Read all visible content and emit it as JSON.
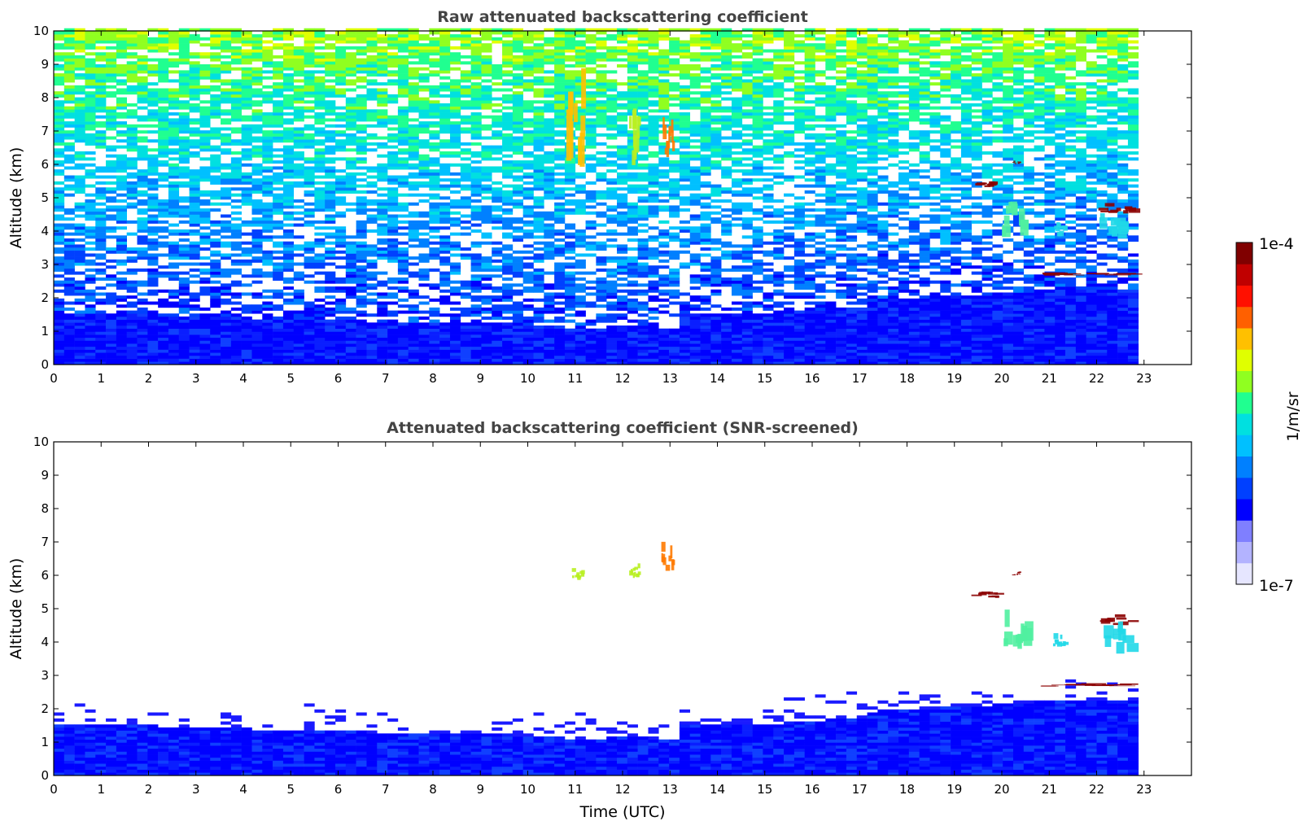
{
  "chart_data": [
    {
      "type": "heatmap",
      "title": "Raw attenuated backscattering coefficient",
      "xlabel": "",
      "ylabel": "Altitude (km)",
      "xlim": [
        0,
        24
      ],
      "ylim": [
        0,
        10
      ],
      "xticks": [
        "0",
        "1",
        "2",
        "3",
        "4",
        "5",
        "6",
        "7",
        "8",
        "9",
        "10",
        "11",
        "12",
        "13",
        "14",
        "15",
        "16",
        "17",
        "18",
        "19",
        "20",
        "21",
        "22",
        "23"
      ],
      "yticks": [
        "0",
        "1",
        "2",
        "3",
        "4",
        "5",
        "6",
        "7",
        "8",
        "9",
        "10"
      ],
      "data_end_hour": 22.85,
      "boundary_layer_top_km": [
        [
          0,
          1.5
        ],
        [
          2,
          1.45
        ],
        [
          4,
          1.35
        ],
        [
          5,
          1.3
        ],
        [
          7,
          1.25
        ],
        [
          9,
          1.2
        ],
        [
          10,
          1.15
        ],
        [
          11,
          1.05
        ],
        [
          12,
          1.1
        ],
        [
          13,
          1.05
        ],
        [
          13.1,
          1.45
        ],
        [
          15,
          1.5
        ],
        [
          17,
          1.7
        ],
        [
          17.3,
          1.9
        ],
        [
          19,
          2.0
        ],
        [
          20,
          2.1
        ],
        [
          21,
          2.2
        ],
        [
          22.85,
          2.25
        ]
      ],
      "noise": "strong background noise increasing with altitude",
      "features": [
        {
          "kind": "cirrus",
          "t": [
            10.8,
            11.2
          ],
          "z": [
            5.8,
            8.5
          ],
          "level": "yellow-orange"
        },
        {
          "kind": "cirrus",
          "t": [
            12.1,
            12.4
          ],
          "z": [
            5.9,
            7.5
          ],
          "level": "yellow-green"
        },
        {
          "kind": "cirrus",
          "t": [
            12.8,
            13.1
          ],
          "z": [
            6.1,
            7.4
          ],
          "level": "orange"
        },
        {
          "kind": "cloud",
          "t": [
            19.3,
            20.0
          ],
          "z": [
            5.3,
            5.5
          ],
          "level": "dark-red"
        },
        {
          "kind": "cloud",
          "t": [
            20.2,
            20.4
          ],
          "z": [
            6.0,
            6.1
          ],
          "level": "dark-red"
        },
        {
          "kind": "cloud",
          "t": [
            20.0,
            20.6
          ],
          "z": [
            3.7,
            5.0
          ],
          "level": "green-cyan"
        },
        {
          "kind": "cloud",
          "t": [
            21.0,
            21.4
          ],
          "z": [
            3.8,
            4.2
          ],
          "level": "cyan"
        },
        {
          "kind": "cloud",
          "t": [
            22.0,
            22.8
          ],
          "z": [
            4.5,
            4.8
          ],
          "level": "dark-red"
        },
        {
          "kind": "cloud",
          "t": [
            22.0,
            22.8
          ],
          "z": [
            3.6,
            4.5
          ],
          "level": "cyan"
        },
        {
          "kind": "layer",
          "t": [
            20.8,
            22.85
          ],
          "z": [
            2.65,
            2.75
          ],
          "level": "dark-red"
        }
      ]
    },
    {
      "type": "heatmap",
      "title": "Attenuated backscattering coefficient (SNR-screened)",
      "xlabel": "Time (UTC)",
      "ylabel": "Altitude (km)",
      "xlim": [
        0,
        24
      ],
      "ylim": [
        0,
        10
      ],
      "xticks": [
        "0",
        "1",
        "2",
        "3",
        "4",
        "5",
        "6",
        "7",
        "8",
        "9",
        "10",
        "11",
        "12",
        "13",
        "14",
        "15",
        "16",
        "17",
        "18",
        "19",
        "20",
        "21",
        "22",
        "23"
      ],
      "yticks": [
        "0",
        "1",
        "2",
        "3",
        "4",
        "5",
        "6",
        "7",
        "8",
        "9",
        "10"
      ],
      "data_end_hour": 22.85,
      "boundary_layer_top_km": [
        [
          0,
          1.5
        ],
        [
          2,
          1.45
        ],
        [
          4,
          1.35
        ],
        [
          5,
          1.3
        ],
        [
          7,
          1.25
        ],
        [
          9,
          1.2
        ],
        [
          10,
          1.15
        ],
        [
          11,
          1.05
        ],
        [
          12,
          1.1
        ],
        [
          13,
          1.05
        ],
        [
          13.1,
          1.45
        ],
        [
          15,
          1.5
        ],
        [
          17,
          1.7
        ],
        [
          17.3,
          1.9
        ],
        [
          19,
          2.0
        ],
        [
          20,
          2.1
        ],
        [
          21,
          2.2
        ],
        [
          22.85,
          2.25
        ]
      ],
      "noise": "screened (white above boundary layer)",
      "features": [
        {
          "kind": "cirrus",
          "t": [
            10.9,
            11.2
          ],
          "z": [
            5.85,
            6.2
          ],
          "level": "yellow-green"
        },
        {
          "kind": "cirrus",
          "t": [
            12.1,
            12.4
          ],
          "z": [
            5.9,
            6.3
          ],
          "level": "yellow-green"
        },
        {
          "kind": "cirrus",
          "t": [
            12.8,
            13.1
          ],
          "z": [
            6.1,
            7.0
          ],
          "level": "orange"
        },
        {
          "kind": "cloud",
          "t": [
            19.3,
            20.0
          ],
          "z": [
            5.3,
            5.5
          ],
          "level": "dark-red"
        },
        {
          "kind": "cloud",
          "t": [
            20.2,
            20.4
          ],
          "z": [
            6.0,
            6.1
          ],
          "level": "dark-red"
        },
        {
          "kind": "cloud",
          "t": [
            20.0,
            20.6
          ],
          "z": [
            3.7,
            5.0
          ],
          "level": "green-cyan"
        },
        {
          "kind": "cloud",
          "t": [
            21.0,
            21.4
          ],
          "z": [
            3.8,
            4.2
          ],
          "level": "cyan"
        },
        {
          "kind": "cloud",
          "t": [
            22.0,
            22.8
          ],
          "z": [
            4.5,
            4.8
          ],
          "level": "dark-red"
        },
        {
          "kind": "cloud",
          "t": [
            22.0,
            22.8
          ],
          "z": [
            3.6,
            4.5
          ],
          "level": "cyan"
        },
        {
          "kind": "layer",
          "t": [
            20.8,
            22.85
          ],
          "z": [
            2.65,
            2.75
          ],
          "level": "dark-red"
        }
      ]
    }
  ],
  "colorbar": {
    "label": "1/m/sr",
    "max_label": "1e-4",
    "min_label": "1e-7",
    "scale": "log",
    "range": [
      1e-07,
      0.0001
    ],
    "colormap": "jet",
    "colors": [
      "#e6e6ff",
      "#b3b3ff",
      "#7f7fff",
      "#0000ff",
      "#0040ff",
      "#0080ff",
      "#00c0ff",
      "#00e0e0",
      "#20ff90",
      "#90ff20",
      "#e0ff00",
      "#ffc000",
      "#ff6000",
      "#ff1000",
      "#c00000",
      "#800000"
    ]
  }
}
